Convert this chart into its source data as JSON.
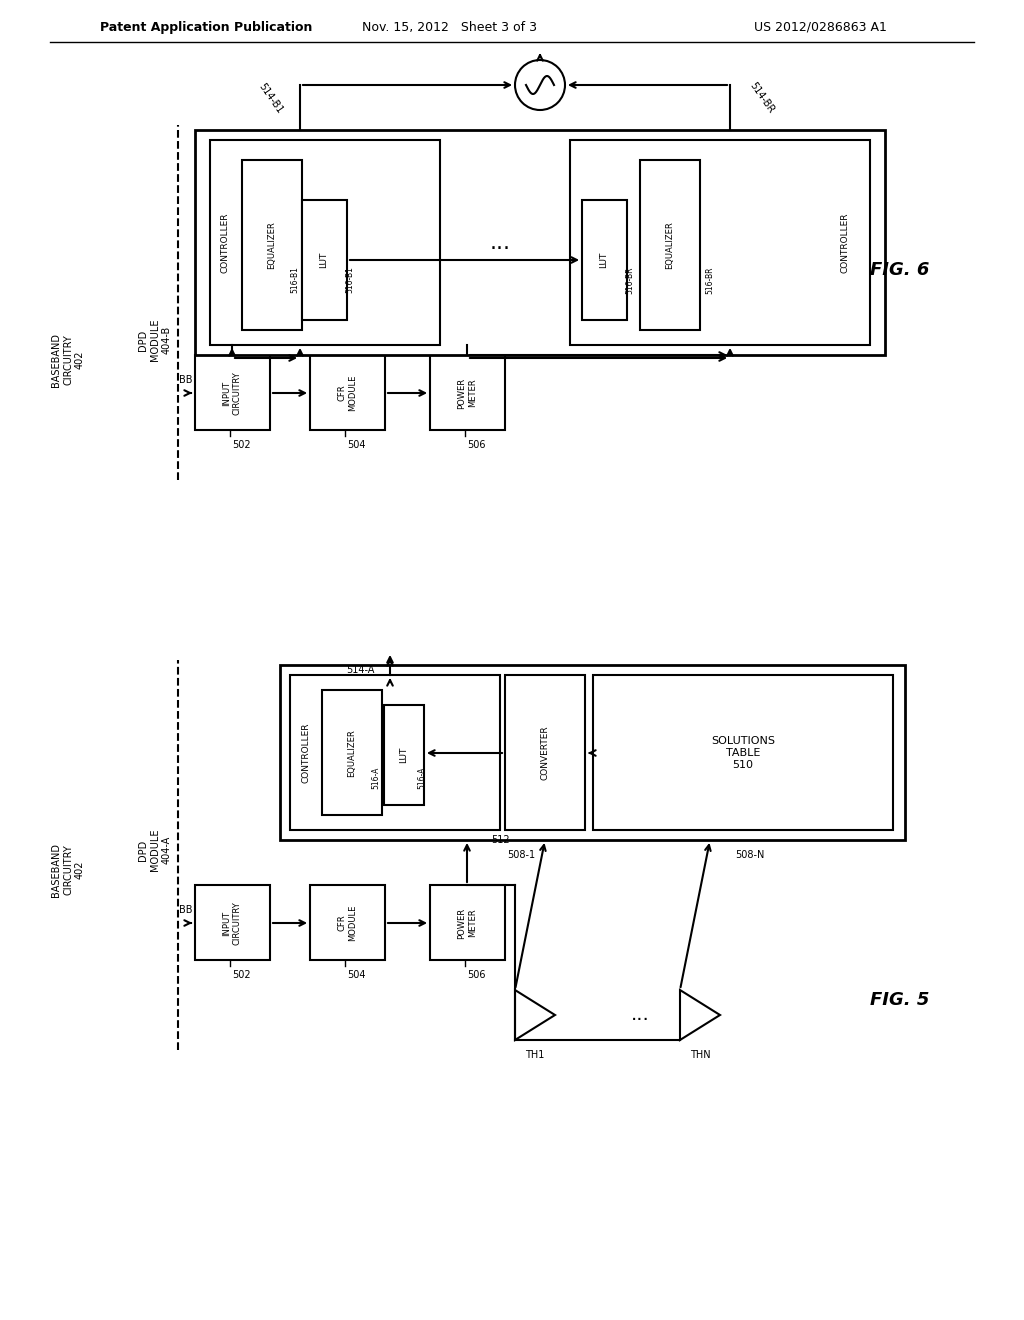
{
  "bg_color": "#ffffff",
  "header_text": "Patent Application Publication",
  "header_date": "Nov. 15, 2012   Sheet 3 of 3",
  "header_patent": "US 2012/0286863 A1",
  "fig6_label": "FIG. 6",
  "fig5_label": "FIG. 5"
}
